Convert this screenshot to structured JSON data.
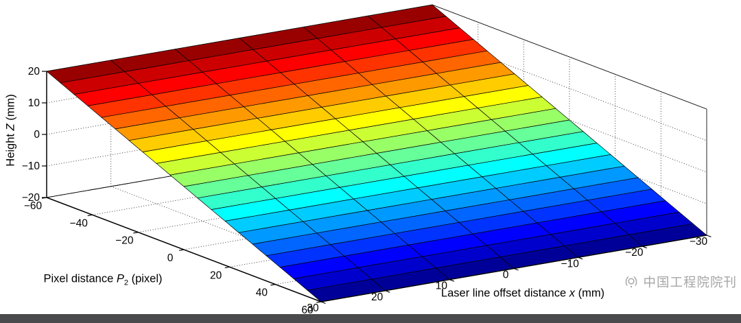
{
  "page": {
    "background": "#ffffff",
    "footer_bar_color": "#4a4a4c",
    "watermark_color": "#a6a6a6"
  },
  "watermark": {
    "text": "中国工程院院刊"
  },
  "chart_data": {
    "type": "surface",
    "style": "matlab-faceted-surf",
    "colormap": "jet",
    "grid_style": "dotted back walls and floor",
    "view": "3D orthographic, MATLAB default-like azimuth/elevation",
    "x_axis": {
      "label": "Laser line offset distance x (mm)",
      "label_pre": "Laser line offset distance ",
      "label_var": "x",
      "label_post": " (mm)",
      "ticks": [
        30,
        20,
        10,
        0,
        -10,
        -20,
        -30
      ],
      "range": [
        30,
        -30
      ]
    },
    "y_axis": {
      "label": "Pixel distance P2 (pixel)",
      "label_pre": "Pixel distance ",
      "label_var": "P",
      "label_sub": "2",
      "label_post": " (pixel)",
      "ticks": [
        -60,
        -40,
        -20,
        0,
        20,
        40,
        60
      ],
      "range": [
        -60,
        60
      ]
    },
    "z_axis": {
      "label": "Height Z (mm)",
      "label_pre": "Height ",
      "label_var": "Z",
      "label_post": " (mm)",
      "ticks": [
        -20,
        -10,
        0,
        10,
        20
      ],
      "range": [
        -20,
        20
      ]
    },
    "surface": {
      "relation": "Z = -P2/3 : planar calibration surface, Z spans +20 mm (dark red) at P2=-60 down to -20 mm (dark blue) at P2=+60, constant along laser line offset x",
      "p2_grid": [
        -60,
        -54,
        -48,
        -42,
        -36,
        -30,
        -24,
        -18,
        -12,
        -6,
        0,
        6,
        12,
        18,
        24,
        30,
        36,
        42,
        48,
        54,
        60
      ],
      "x_grid": [
        30,
        20,
        10,
        0,
        -10,
        -20,
        -30
      ],
      "z_by_p2": [
        20,
        18,
        16,
        14,
        12,
        10,
        8,
        6,
        4,
        2,
        0,
        -2,
        -4,
        -6,
        -8,
        -10,
        -12,
        -14,
        -16,
        -18,
        -20
      ],
      "zlim": [
        -20,
        20
      ]
    }
  }
}
